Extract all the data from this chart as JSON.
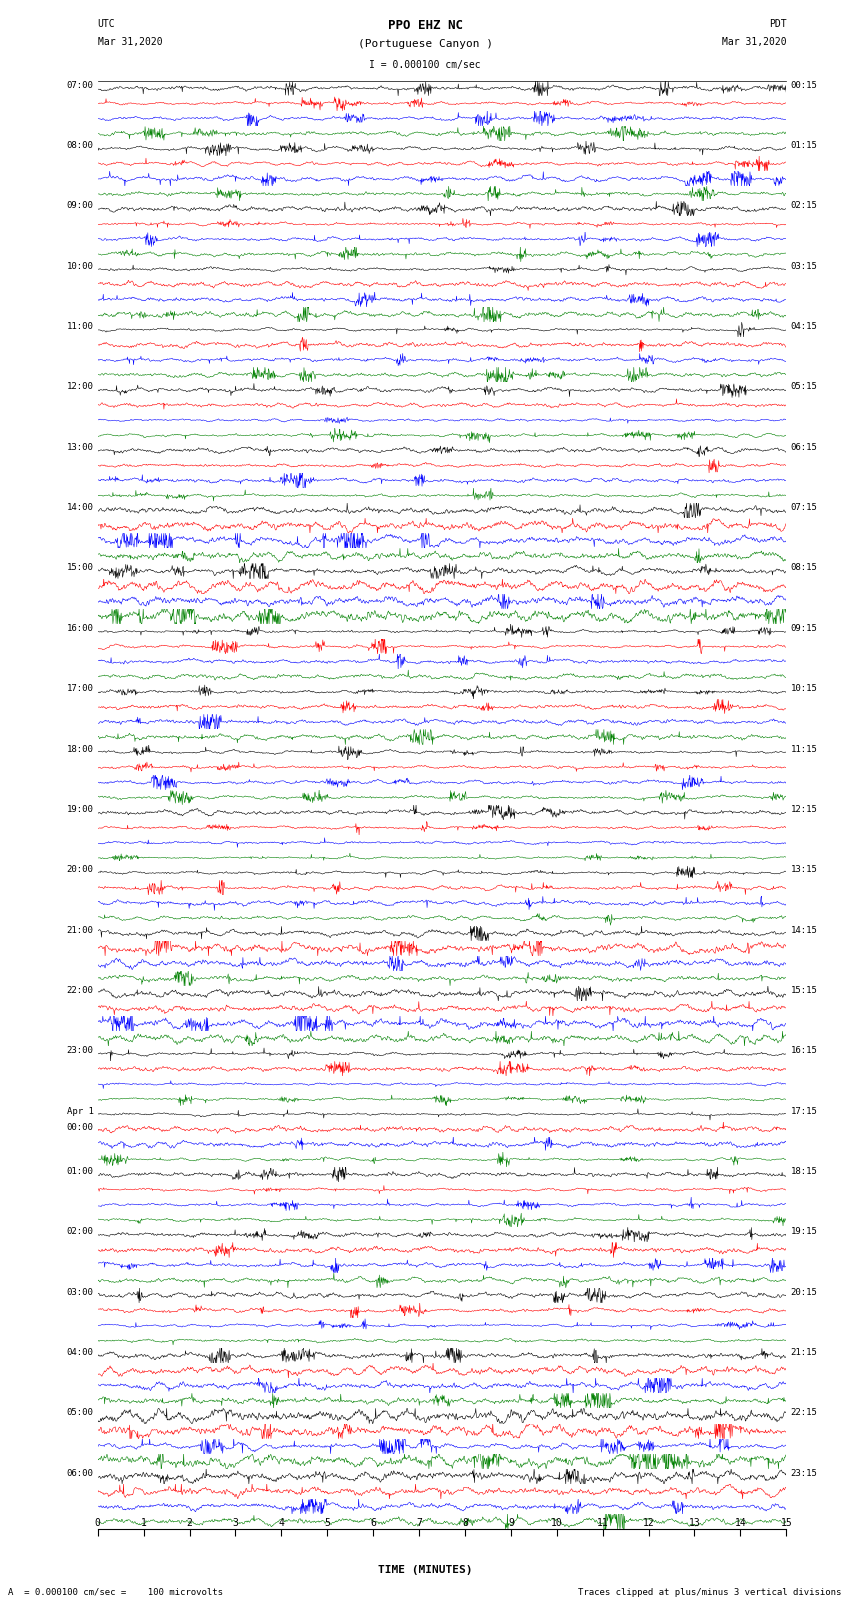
{
  "title_line1": "PPO EHZ NC",
  "title_line2": "(Portuguese Canyon )",
  "scale_label": "I = 0.000100 cm/sec",
  "utc_label": "UTC",
  "utc_date": "Mar 31,2020",
  "pdt_label": "PDT",
  "pdt_date": "Mar 31,2020",
  "left_times": [
    "07:00",
    "08:00",
    "09:00",
    "10:00",
    "11:00",
    "12:00",
    "13:00",
    "14:00",
    "15:00",
    "16:00",
    "17:00",
    "18:00",
    "19:00",
    "20:00",
    "21:00",
    "22:00",
    "23:00",
    "Apr 1\n00:00",
    "01:00",
    "02:00",
    "03:00",
    "04:00",
    "05:00",
    "06:00"
  ],
  "right_times": [
    "00:15",
    "01:15",
    "02:15",
    "03:15",
    "04:15",
    "05:15",
    "06:15",
    "07:15",
    "08:15",
    "09:15",
    "10:15",
    "11:15",
    "12:15",
    "13:15",
    "14:15",
    "15:15",
    "16:15",
    "17:15",
    "18:15",
    "19:15",
    "20:15",
    "21:15",
    "22:15",
    "23:15"
  ],
  "xlabel": "TIME (MINUTES)",
  "xticks": [
    0,
    1,
    2,
    3,
    4,
    5,
    6,
    7,
    8,
    9,
    10,
    11,
    12,
    13,
    14,
    15
  ],
  "footnote_left": "A  = 0.000100 cm/sec =    100 microvolts",
  "footnote_right": "Traces clipped at plus/minus 3 vertical divisions",
  "num_rows": 24,
  "traces_per_row": 4,
  "fig_width": 8.5,
  "fig_height": 16.13,
  "bg_color": "#ffffff",
  "trace_colors": [
    "#000000",
    "#ff0000",
    "#0000ff",
    "#008000"
  ],
  "high_amplitude_rows": [
    7,
    8,
    14,
    15,
    21,
    22,
    23
  ],
  "very_high_rows": [
    7,
    8,
    22,
    23
  ]
}
